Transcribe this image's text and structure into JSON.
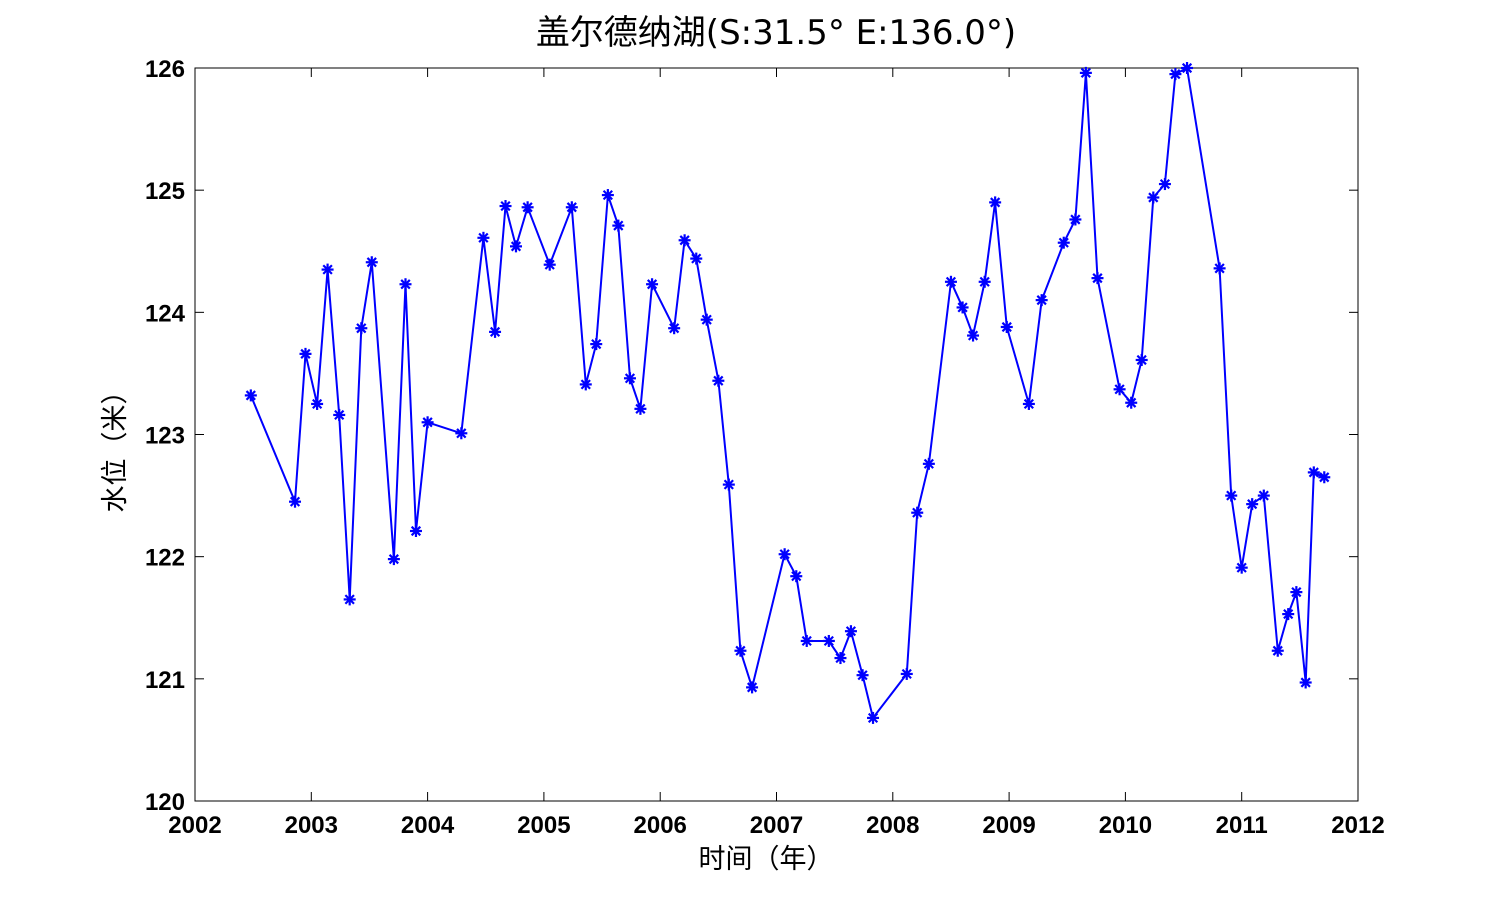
{
  "chart_data": {
    "type": "line",
    "title": "盖尔德纳湖(S:31.5° E:136.0°)",
    "xlabel": "时间（年）",
    "ylabel": "水位（米）",
    "xlim": [
      2002,
      2012
    ],
    "ylim": [
      120,
      126
    ],
    "xticks": [
      "2002",
      "2003",
      "2004",
      "2005",
      "2006",
      "2007",
      "2008",
      "2009",
      "2010",
      "2011",
      "2012"
    ],
    "yticks": [
      "120",
      "121",
      "122",
      "123",
      "124",
      "125",
      "126"
    ],
    "grid": false,
    "legend": "none",
    "series": [
      {
        "color": "#0000ff",
        "marker": "asterisk",
        "x": [
          2002.48,
          2002.86,
          2002.95,
          2003.05,
          2003.14,
          2003.24,
          2003.33,
          2003.43,
          2003.52,
          2003.71,
          2003.81,
          2003.9,
          2004.0,
          2004.29,
          2004.48,
          2004.58,
          2004.67,
          2004.76,
          2004.86,
          2005.05,
          2005.24,
          2005.36,
          2005.45,
          2005.55,
          2005.64,
          2005.74,
          2005.83,
          2005.93,
          2006.12,
          2006.21,
          2006.31,
          2006.4,
          2006.5,
          2006.59,
          2006.69,
          2006.79,
          2007.07,
          2007.17,
          2007.26,
          2007.45,
          2007.55,
          2007.64,
          2007.74,
          2007.83,
          2008.12,
          2008.21,
          2008.31,
          2008.5,
          2008.6,
          2008.69,
          2008.79,
          2008.88,
          2008.98,
          2009.17,
          2009.28,
          2009.47,
          2009.57,
          2009.66,
          2009.76,
          2009.95,
          2010.05,
          2010.14,
          2010.24,
          2010.34,
          2010.43,
          2010.53,
          2010.81,
          2010.91,
          2011.0,
          2011.09,
          2011.19,
          2011.31,
          2011.4,
          2011.47,
          2011.55,
          2011.62,
          2011.71
        ],
        "y": [
          123.32,
          122.45,
          123.66,
          123.25,
          124.35,
          123.16,
          121.65,
          123.87,
          124.41,
          121.98,
          124.23,
          122.21,
          123.1,
          123.01,
          124.61,
          123.84,
          124.87,
          124.54,
          124.86,
          124.39,
          124.86,
          123.41,
          123.74,
          124.96,
          124.71,
          123.46,
          123.21,
          124.23,
          123.87,
          124.59,
          124.44,
          123.94,
          123.44,
          122.59,
          121.23,
          120.93,
          122.02,
          121.84,
          121.31,
          121.31,
          121.17,
          121.39,
          121.03,
          120.68,
          121.04,
          122.36,
          122.76,
          124.25,
          124.04,
          123.81,
          124.25,
          124.9,
          123.88,
          123.25,
          124.1,
          124.57,
          124.76,
          125.96,
          124.28,
          123.37,
          123.26,
          123.61,
          124.94,
          125.05,
          125.95,
          126.0,
          124.36,
          122.5,
          121.91,
          122.43,
          122.5,
          121.23,
          121.53,
          121.71,
          120.97,
          122.69,
          122.65
        ]
      }
    ]
  }
}
